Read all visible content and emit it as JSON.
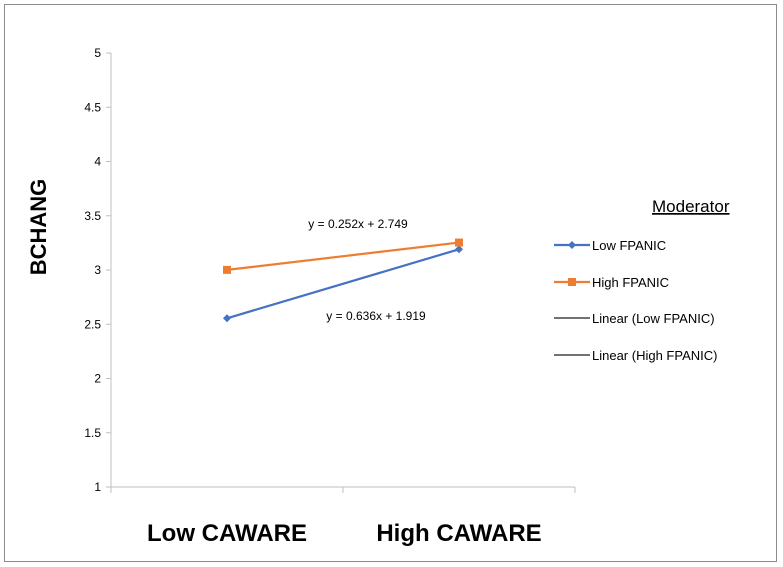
{
  "chart_data": {
    "type": "line",
    "ylabel": "BCHANG",
    "categories": [
      "Low CAWARE",
      "High CAWARE"
    ],
    "y_ticks": [
      "1",
      "1.5",
      "2",
      "2.5",
      "3",
      "3.5",
      "4",
      "4.5",
      "5"
    ],
    "ylim": [
      1,
      5
    ],
    "series": [
      {
        "name": "Low FPANIC",
        "values": [
          2.555,
          3.191
        ],
        "color": "#4472c4",
        "marker": "diamond"
      },
      {
        "name": "High FPANIC",
        "values": [
          3.001,
          3.253
        ],
        "color": "#ed7d31",
        "marker": "square"
      }
    ],
    "trendlines": [
      {
        "name": "Linear (Low FPANIC)",
        "color": "#1f1f1f",
        "equation": "y = 0.636x + 1.919",
        "slope": 0.636,
        "intercept": 1.919
      },
      {
        "name": "Linear (High FPANIC)",
        "color": "#1f1f1f",
        "equation": "y = 0.252x + 2.749",
        "slope": 0.252,
        "intercept": 2.749
      }
    ],
    "legend": {
      "title": "Moderator",
      "entries": [
        "Low FPANIC",
        "High FPANIC",
        "Linear (Low FPANIC)",
        "Linear (High FPANIC)"
      ]
    },
    "grid": false,
    "legend_position": "right"
  }
}
